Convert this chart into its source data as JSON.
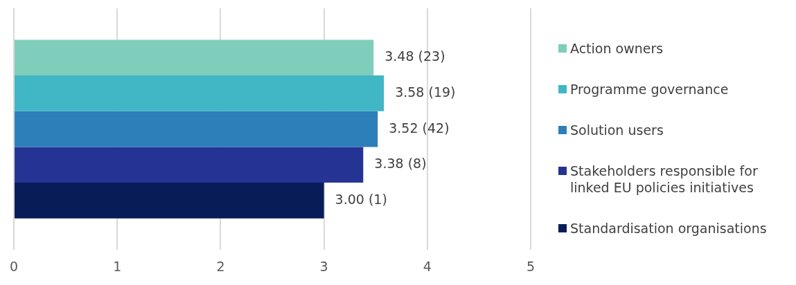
{
  "chart_data": {
    "type": "bar",
    "orientation": "horizontal",
    "categories": [
      null
    ],
    "series": [
      {
        "name": "Action owners",
        "color": "#7fcdbb",
        "values": [
          3.48
        ],
        "value_labels": [
          "3.48 (23)"
        ]
      },
      {
        "name": "Programme governance",
        "color": "#41b6c4",
        "values": [
          3.58
        ],
        "value_labels": [
          "3.58 (19)"
        ]
      },
      {
        "name": "Solution users",
        "color": "#2c7fb8",
        "values": [
          3.52
        ],
        "value_labels": [
          "3.52 (42)"
        ]
      },
      {
        "name": "Stakeholders responsible for linked EU policies initiatives",
        "color": "#253494",
        "values": [
          3.38
        ],
        "value_labels": [
          "3.38 (8)"
        ]
      },
      {
        "name": "Standardisation organisations",
        "color": "#081d58",
        "values": [
          3.0
        ],
        "value_labels": [
          "3.00 (1)"
        ]
      }
    ],
    "xlim": [
      0,
      5
    ],
    "xticks": [
      0,
      1,
      2,
      3,
      4,
      5
    ],
    "grid": "x",
    "legend": "right"
  }
}
